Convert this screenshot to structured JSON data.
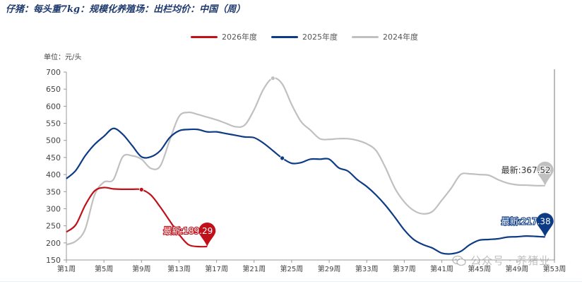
{
  "header": {
    "title": "仔猪：每头重7kg：规模化养殖场：出栏均价：中国（周）"
  },
  "unit_label": "单位：元/头",
  "watermark": {
    "text": "公众号 · 养猪业",
    "icon": "wechat-icon"
  },
  "chart_data": {
    "type": "line",
    "title": "仔猪：每头重7kg：规模化养殖场：出栏均价：中国（周）",
    "ylabel": "单位：元/头",
    "xlabel": "",
    "ylim": [
      150,
      700
    ],
    "yticks": [
      150,
      200,
      250,
      300,
      350,
      400,
      450,
      500,
      550,
      600,
      650,
      700
    ],
    "xlim": [
      1,
      53
    ],
    "xticks": [
      1,
      5,
      9,
      13,
      17,
      21,
      25,
      29,
      33,
      37,
      41,
      45,
      49,
      53
    ],
    "xtick_labels": [
      "第1周",
      "第5周",
      "第9周",
      "第13周",
      "第17周",
      "第21周",
      "第25周",
      "第29周",
      "第33周",
      "第37周",
      "第41周",
      "第45周",
      "第49周",
      "第53周"
    ],
    "legend_position": "top-center",
    "grid": false,
    "series": [
      {
        "name": "2026年度",
        "color": "#c0101a",
        "x": [
          1,
          2,
          3,
          4,
          5,
          6,
          7,
          8,
          9,
          10,
          11,
          12,
          13,
          14,
          15,
          16
        ],
        "values": [
          232,
          253,
          310,
          352,
          362,
          358,
          357,
          357,
          356,
          340,
          305,
          265,
          225,
          195,
          189.29,
          189.29
        ],
        "marker_x": 9,
        "callout": {
          "x": 16,
          "value": 189.29,
          "label": "最新:189.29"
        }
      },
      {
        "name": "2025年度",
        "color": "#0d3b85",
        "x": [
          1,
          2,
          3,
          4,
          5,
          6,
          7,
          8,
          9,
          10,
          11,
          12,
          13,
          14,
          15,
          16,
          17,
          18,
          19,
          20,
          21,
          22,
          23,
          24,
          25,
          26,
          27,
          28,
          29,
          30,
          31,
          32,
          33,
          34,
          35,
          36,
          37,
          38,
          39,
          40,
          41,
          42,
          43,
          44,
          45,
          46,
          47,
          48,
          49,
          50,
          51,
          52
        ],
        "values": [
          388,
          412,
          455,
          488,
          512,
          535,
          518,
          485,
          452,
          452,
          470,
          508,
          528,
          532,
          532,
          525,
          525,
          520,
          515,
          510,
          508,
          492,
          470,
          448,
          433,
          435,
          445,
          445,
          445,
          420,
          410,
          385,
          365,
          340,
          310,
          275,
          238,
          210,
          195,
          185,
          170,
          168,
          175,
          195,
          208,
          210,
          212,
          217,
          218,
          220,
          219,
          217.38
        ],
        "marker_x": 24,
        "callout": {
          "x": 52,
          "value": 217.38,
          "label": "最新:217.38"
        }
      },
      {
        "name": "2024年度",
        "color": "#c0c0c0",
        "x": [
          1,
          2,
          3,
          4,
          5,
          6,
          7,
          8,
          9,
          10,
          11,
          12,
          13,
          14,
          15,
          16,
          17,
          18,
          19,
          20,
          21,
          22,
          23,
          24,
          25,
          26,
          27,
          28,
          29,
          30,
          31,
          32,
          33,
          34,
          35,
          36,
          37,
          38,
          39,
          40,
          41,
          42,
          43,
          44,
          45,
          46,
          47,
          48,
          49,
          50,
          51,
          52
        ],
        "values": [
          195,
          205,
          240,
          340,
          378,
          385,
          452,
          455,
          445,
          418,
          425,
          500,
          570,
          582,
          576,
          568,
          560,
          550,
          540,
          545,
          590,
          650,
          682,
          665,
          605,
          555,
          530,
          505,
          503,
          505,
          505,
          500,
          490,
          470,
          420,
          360,
          320,
          295,
          285,
          292,
          325,
          360,
          400,
          402,
          400,
          398,
          385,
          375,
          370,
          369,
          367.52,
          367.52
        ],
        "marker_x": 23,
        "callout": {
          "x": 52,
          "value": 367.52,
          "label": "最新:367.52"
        }
      }
    ]
  }
}
